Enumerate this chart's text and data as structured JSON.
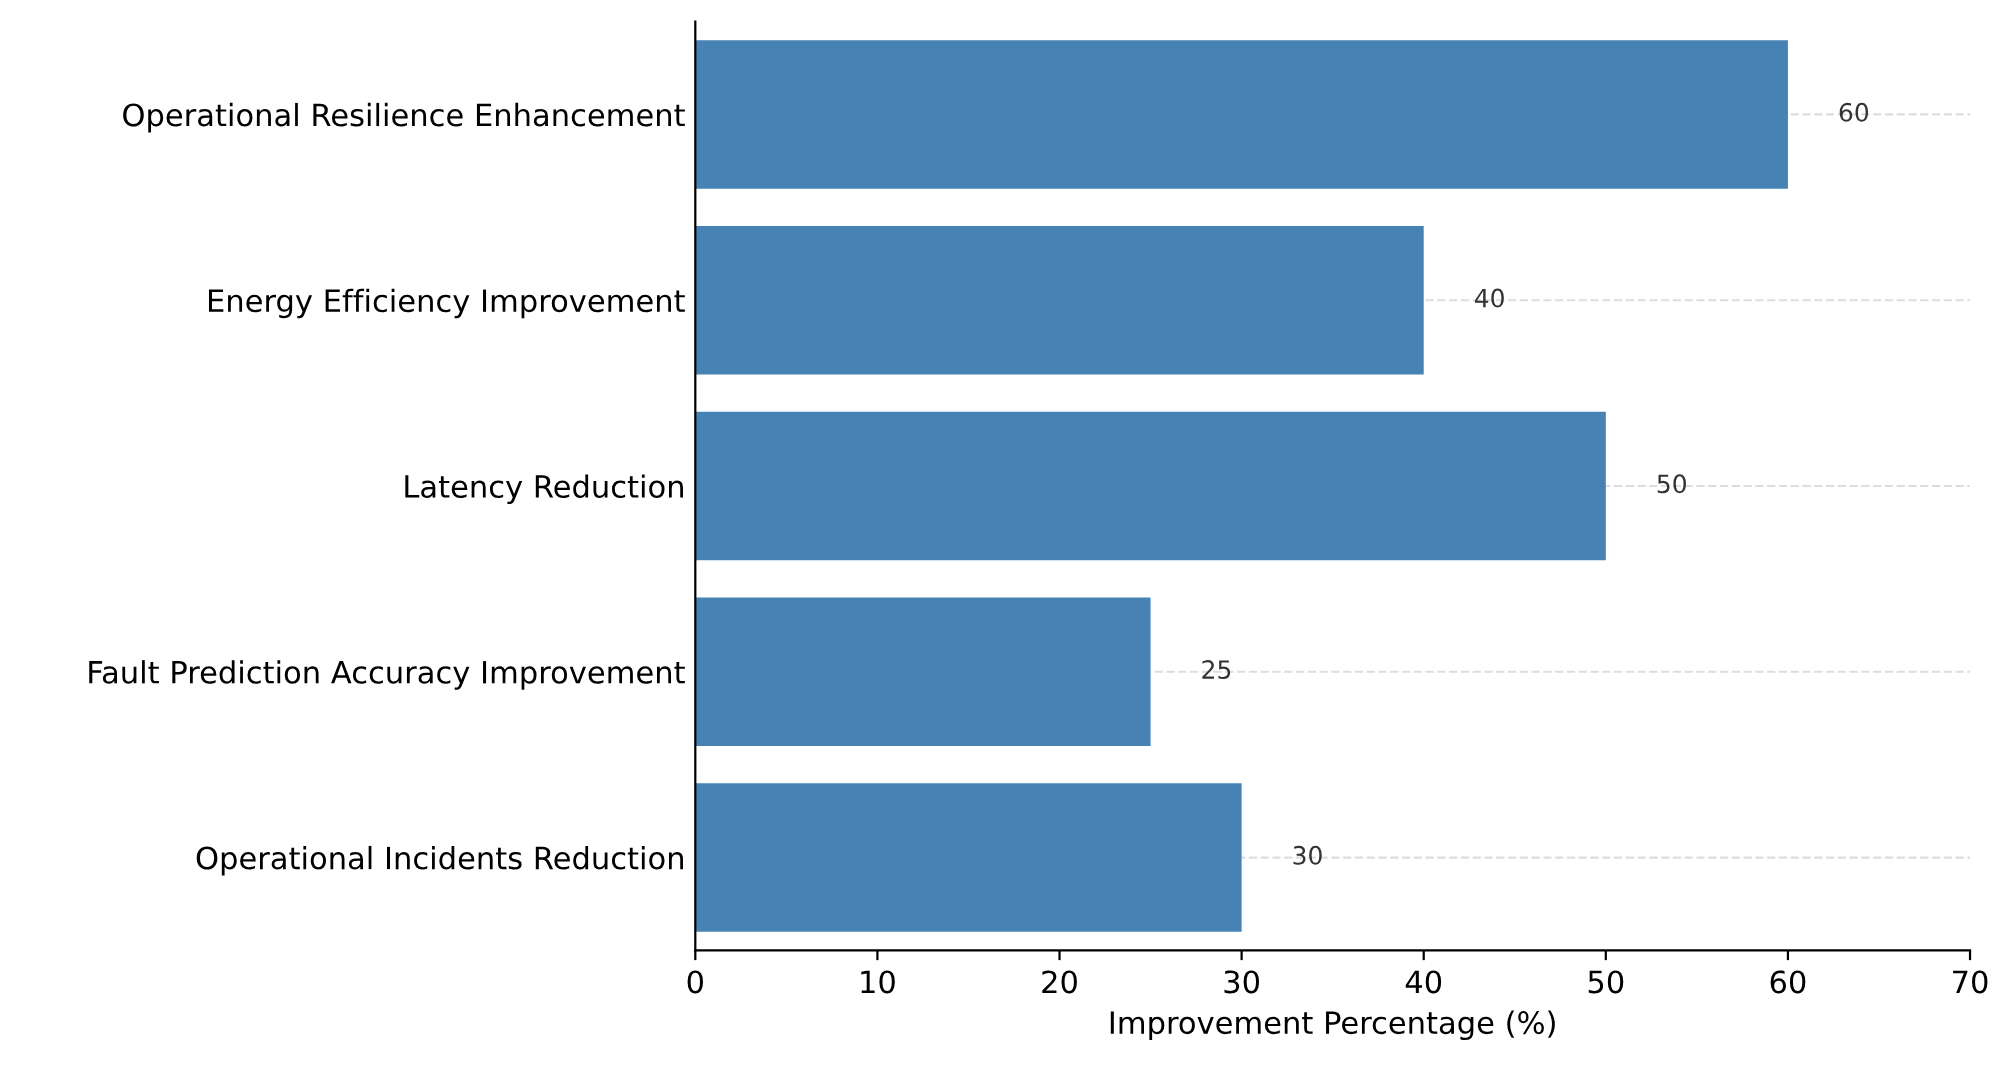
{
  "chart_data": {
    "type": "bar",
    "orientation": "horizontal",
    "categories": [
      "Operational Resilience Enhancement",
      "Energy Efficiency Improvement",
      "Latency Reduction",
      "Fault Prediction Accuracy Improvement",
      "Operational Incidents Reduction"
    ],
    "values": [
      60,
      40,
      50,
      25,
      30
    ],
    "color": "#4682b4",
    "xlabel": "Improvement Percentage (%)",
    "xlim": [
      0,
      70
    ],
    "xticks": [
      0,
      10,
      20,
      30,
      40,
      50,
      60,
      70
    ],
    "grid": "y",
    "data_labels": true
  }
}
